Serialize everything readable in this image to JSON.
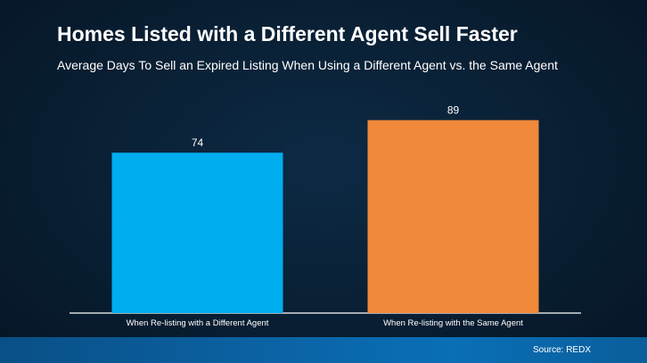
{
  "chart_data": {
    "type": "bar",
    "title": "Homes Listed with a Different Agent Sell Faster",
    "subtitle": "Average Days To Sell an Expired Listing When Using a Different Agent vs. the Same Agent",
    "categories": [
      "When Re-listing with a Different Agent",
      "When Re-listing with the Same Agent"
    ],
    "values": [
      74,
      89
    ],
    "data_labels": [
      "74",
      "89"
    ],
    "colors": [
      "#00adef",
      "#f0893a"
    ],
    "ylim": [
      0,
      100
    ],
    "grid": false,
    "legend": "none"
  },
  "footer": {
    "source": "Source: REDX"
  }
}
